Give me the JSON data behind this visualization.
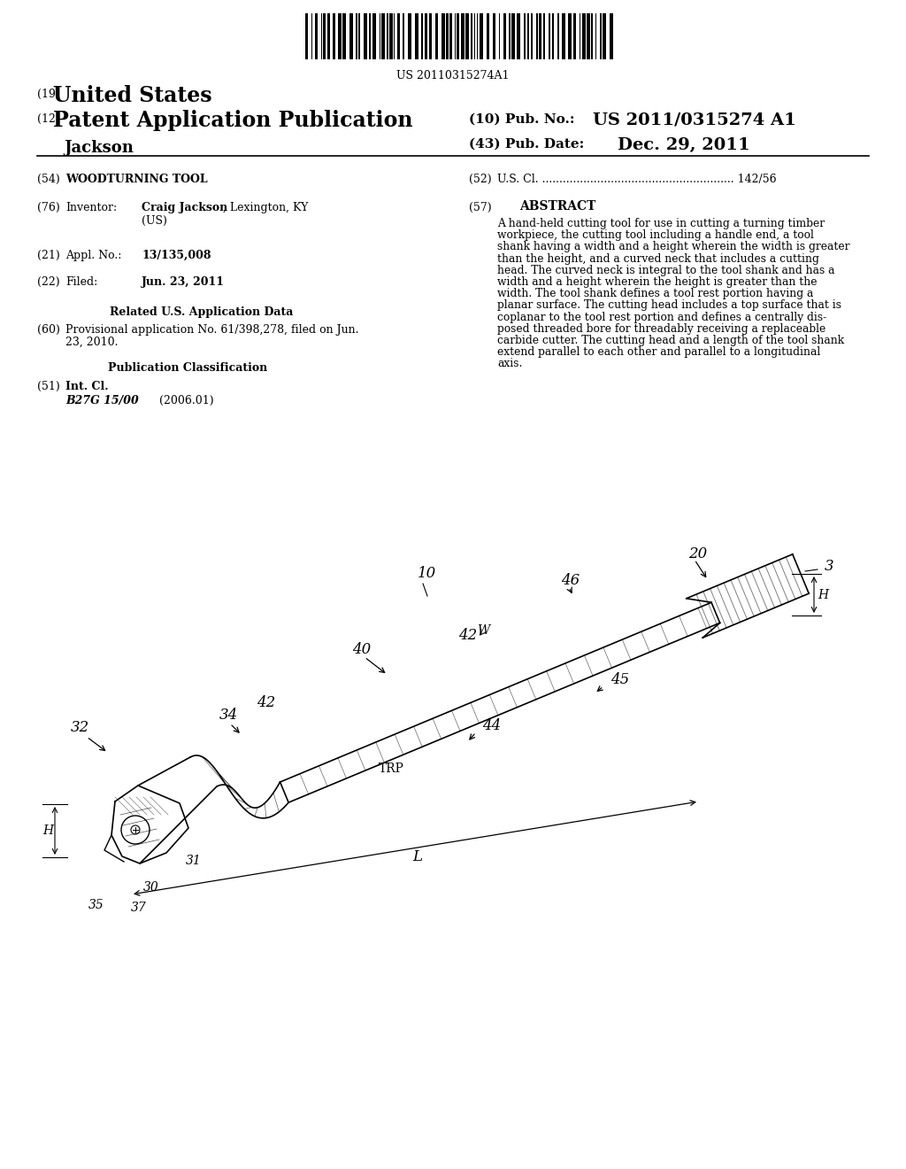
{
  "background_color": "#ffffff",
  "barcode_text": "US 20110315274A1",
  "title_19": "(19)",
  "title_19_text": "United States",
  "title_12": "(12)",
  "title_12_text": "Patent Application Publication",
  "title_10": "(10) Pub. No.:",
  "title_10_val": "US 2011/0315274 A1",
  "title_43": "(43) Pub. Date:",
  "title_43_val": "Dec. 29, 2011",
  "inventor_name": "Jackson",
  "field_54_label": "(54)",
  "field_54_text": "WOODTURNING TOOL",
  "field_52_label": "(52)",
  "field_52_text": "U.S. Cl. ........................................................ 142/56",
  "field_76_label": "(76)",
  "field_76_key": "Inventor:",
  "field_76_name": "Craig Jackson",
  "field_76_loc": ", Lexington, KY",
  "field_76_country": "(US)",
  "field_57_label": "(57)",
  "field_57_title": "ABSTRACT",
  "abstract_lines": [
    "A hand-held cutting tool for use in cutting a turning timber",
    "workpiece, the cutting tool including a handle end, a tool",
    "shank having a width and a height wherein the width is greater",
    "than the height, and a curved neck that includes a cutting",
    "head. The curved neck is integral to the tool shank and has a",
    "width and a height wherein the height is greater than the",
    "width. The tool shank defines a tool rest portion having a",
    "planar surface. The cutting head includes a top surface that is",
    "coplanar to the tool rest portion and defines a centrally dis-",
    "posed threaded bore for threadably receiving a replaceable",
    "carbide cutter. The cutting head and a length of the tool shank",
    "extend parallel to each other and parallel to a longitudinal",
    "axis."
  ],
  "field_21_label": "(21)",
  "field_21_key": "Appl. No.:",
  "field_21_val": "13/135,008",
  "field_22_label": "(22)",
  "field_22_key": "Filed:",
  "field_22_val": "Jun. 23, 2011",
  "related_title": "Related U.S. Application Data",
  "field_60_label": "(60)",
  "field_60_lines": [
    "Provisional application No. 61/398,278, filed on Jun.",
    "23, 2010."
  ],
  "pub_class_title": "Publication Classification",
  "field_51_label": "(51)",
  "field_51_key": "Int. Cl.",
  "field_51_class": "B27G 15/00",
  "field_51_year": "(2006.01)"
}
